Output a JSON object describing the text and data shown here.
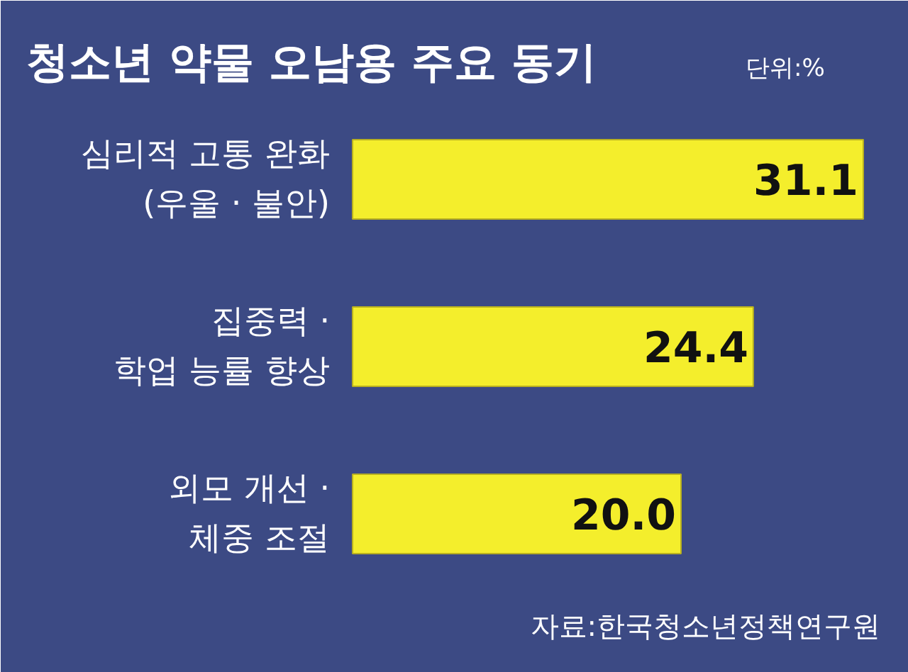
{
  "chart_data": {
    "type": "bar",
    "orientation": "horizontal",
    "title": "청소년 약물 오남용 주요 동기",
    "subtitle": "단위:%",
    "categories": [
      "심리적 고통 완화\n(우울 · 불안)",
      "집중력 ·\n학업 능률 향상",
      "외모 개선 ·\n체중 조절"
    ],
    "values": [
      31.1,
      24.4,
      20.0
    ],
    "value_labels": [
      "31.1",
      "24.4",
      "20.0"
    ],
    "color": "#f4ee2c",
    "annotations": [
      "자료:한국청소년정책연구원"
    ]
  }
}
